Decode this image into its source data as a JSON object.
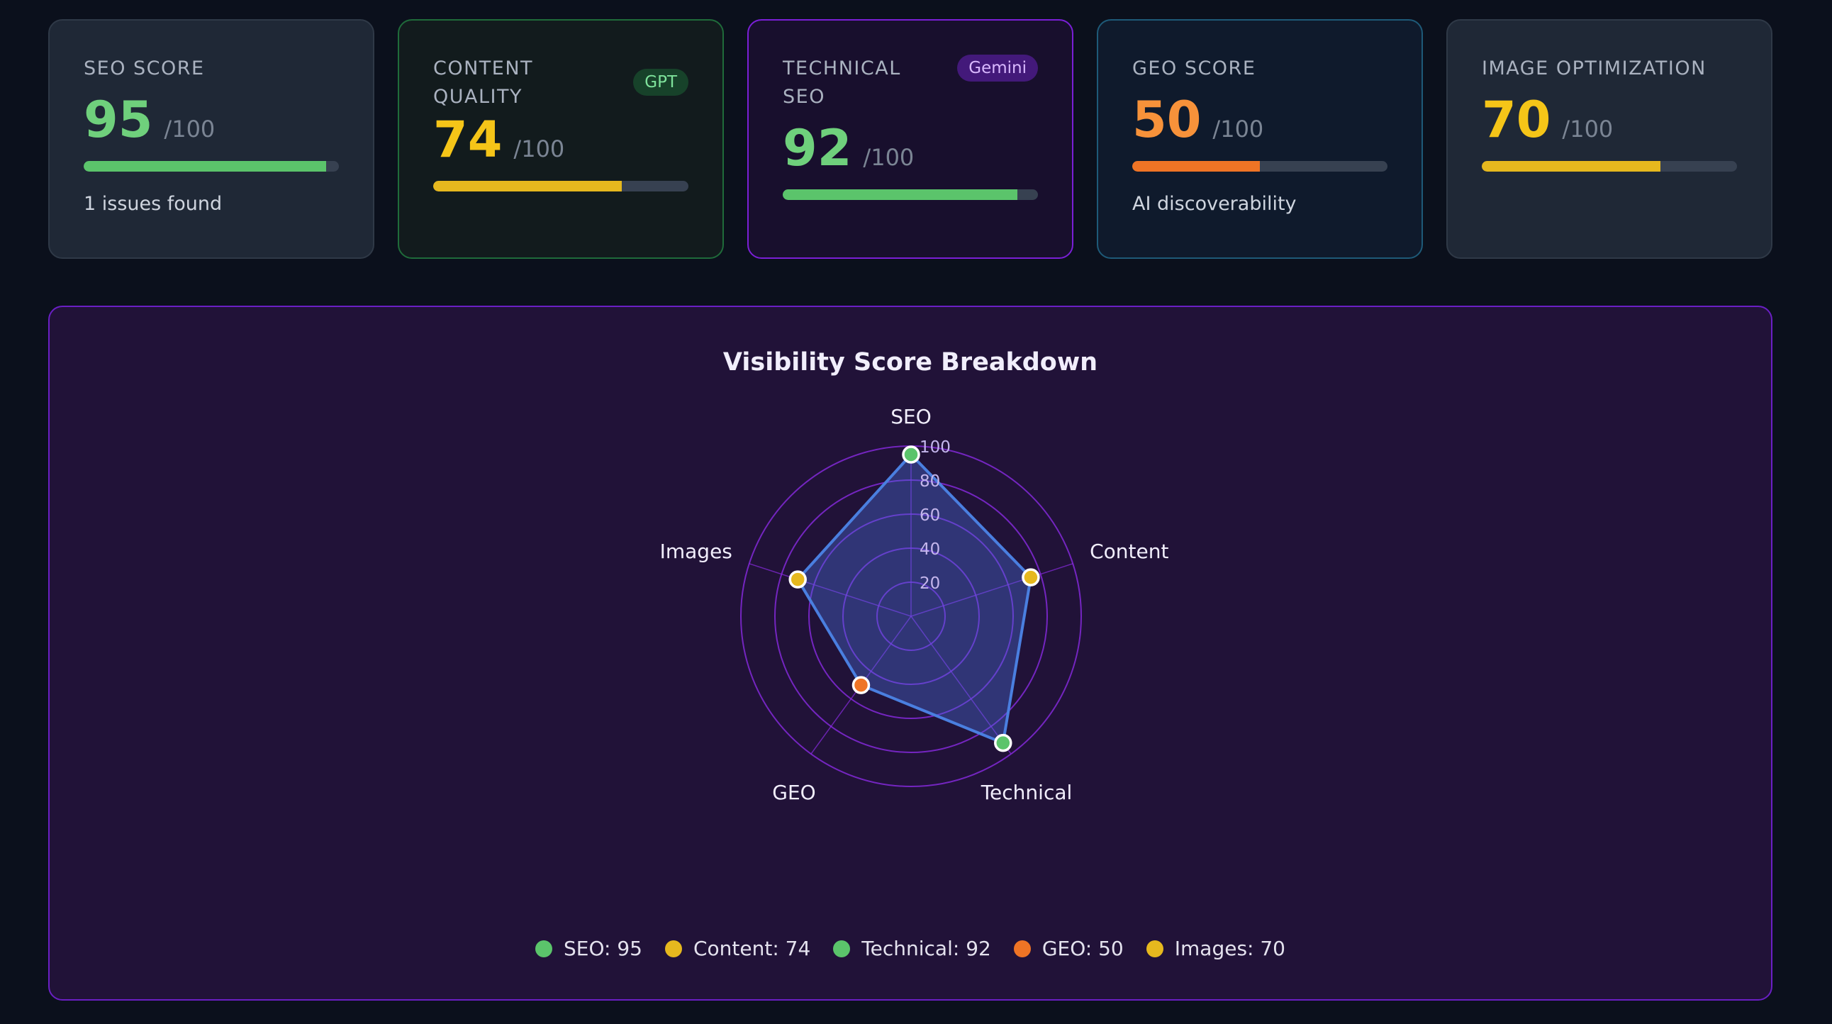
{
  "cards": [
    {
      "label": "SEO SCORE",
      "score": "95",
      "max": "/100",
      "progress": 95,
      "score_color": "#6fd07c",
      "bar_color": "#5bc46b",
      "footer": "1 issues found",
      "badge": ""
    },
    {
      "label": "CONTENT QUALITY",
      "score": "74",
      "max": "/100",
      "progress": 74,
      "score_color": "#f5c518",
      "bar_color": "#e6b81e",
      "footer": "",
      "badge": "GPT"
    },
    {
      "label": "TECHNICAL SEO",
      "score": "92",
      "max": "/100",
      "progress": 92,
      "score_color": "#6fd07c",
      "bar_color": "#5bc46b",
      "footer": "",
      "badge": "Gemini"
    },
    {
      "label": "GEO SCORE",
      "score": "50",
      "max": "/100",
      "progress": 50,
      "score_color": "#f7923a",
      "bar_color": "#ef7425",
      "footer": "AI discoverability",
      "badge": ""
    },
    {
      "label": "IMAGE OPTIMIZATION",
      "score": "70",
      "max": "/100",
      "progress": 70,
      "score_color": "#f5c518",
      "bar_color": "#e6b81e",
      "footer": "",
      "badge": ""
    }
  ],
  "chart_data": {
    "type": "radar",
    "title": "Visibility Score Breakdown",
    "categories": [
      "SEO",
      "Content",
      "Technical",
      "GEO",
      "Images"
    ],
    "values": [
      95,
      74,
      92,
      50,
      70
    ],
    "point_colors": [
      "#5bc46b",
      "#e6b81e",
      "#5bc46b",
      "#ef7425",
      "#e6b81e"
    ],
    "rlim": [
      0,
      100
    ],
    "ticks": [
      20,
      40,
      60,
      80,
      100
    ],
    "series_color": "#4a7fe0",
    "grid_color": "#8a2be2",
    "legend": [
      "SEO: 95",
      "Content: 74",
      "Technical: 92",
      "GEO: 50",
      "Images: 70"
    ],
    "legend_position": "bottom"
  }
}
